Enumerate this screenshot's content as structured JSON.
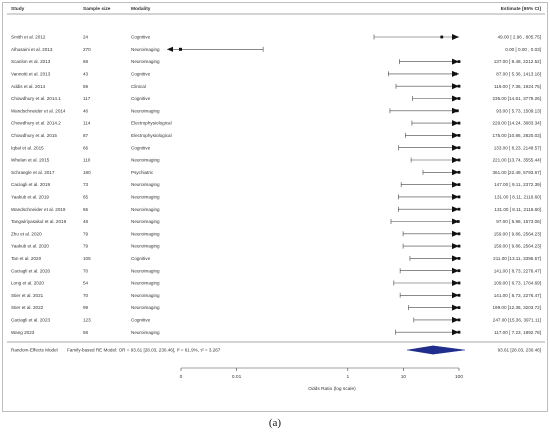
{
  "caption": "(a)",
  "chart_data": {
    "type": "forest",
    "headers": {
      "study": "Study",
      "sample_size": "Sample size",
      "modality": "Modality",
      "estimate": "Estimate [95% CI]"
    },
    "x_axis": {
      "label": "Odds Ratio (log scale)",
      "scale": "log",
      "ticks": [
        0.001,
        0.01,
        1,
        10,
        100
      ],
      "tick_labels": [
        "0",
        "0.01",
        "1",
        "10",
        "100"
      ],
      "range": [
        0.001,
        100
      ]
    },
    "studies": [
      {
        "study": "Smith et al. 2012",
        "n": "24",
        "modality": "Cognitive",
        "est": 49.0,
        "lo": 2.96,
        "hi": 805.75,
        "text": "49.00 [ 2.96 , 805.75]"
      },
      {
        "study": "Alhusaini et al. 2013",
        "n": "270",
        "modality": "Neuroimaging",
        "est": 0.0,
        "lo": 0.0,
        "hi": 0.03,
        "text": "0.00 [ 0.00 , 0.03]"
      },
      {
        "study": "Scanlon et al. 2013",
        "n": "68",
        "modality": "Neuroimaging",
        "est": 137.0,
        "lo": 8.48,
        "hi": 2212.52,
        "text": "137.00 [ 8.48, 2212.52]"
      },
      {
        "study": "Vannotti et al. 2013",
        "n": "43",
        "modality": "Cognitive",
        "est": 87.0,
        "lo": 5.36,
        "hi": 1413.16,
        "text": "87.00 [ 5.36, 1413.16]"
      },
      {
        "study": "Addis et al. 2014",
        "n": "59",
        "modality": "Clinical",
        "est": 119.0,
        "lo": 7.36,
        "hi": 1924.75,
        "text": "119.00 [ 7.36, 1924.75]"
      },
      {
        "study": "Chowdhury et al. 2014.1",
        "n": "117",
        "modality": "Cognitive",
        "est": 235.0,
        "lo": 14.61,
        "hi": 3779.26,
        "text": "235.00 [14.61, 3779.26]"
      },
      {
        "study": "Wandschneider et al. 2014",
        "n": "46",
        "modality": "Neuroimaging",
        "est": 93.0,
        "lo": 5.73,
        "hi": 1509.13,
        "text": "93.00 [ 5.73, 1509.13]"
      },
      {
        "study": "Chowdhury et al. 2014.2",
        "n": "114",
        "modality": "Electrophysiological",
        "est": 229.0,
        "lo": 14.24,
        "hi": 3683.34,
        "text": "229.00 [14.24, 3683.34]"
      },
      {
        "study": "Chowdhury et al. 2015",
        "n": "87",
        "modality": "Electrophysiological",
        "est": 175.0,
        "lo": 10.86,
        "hi": 2820.03,
        "text": "175.00 [10.86, 2820.03]"
      },
      {
        "study": "Iqbal et al. 2015",
        "n": "66",
        "modality": "Cognitive",
        "est": 133.0,
        "lo": 8.23,
        "hi": 2148.57,
        "text": "133.00 [ 8.23, 2148.57]"
      },
      {
        "study": "Whelan et al. 2015",
        "n": "110",
        "modality": "Neuroimaging",
        "est": 221.0,
        "lo": 13.74,
        "hi": 3555.44,
        "text": "221.00 [13.74, 3555.44]"
      },
      {
        "study": "Schraegle et al. 2017",
        "n": "180",
        "modality": "Psychiatric",
        "est": 361.0,
        "lo": 22.49,
        "hi": 5793.67,
        "text": "361.00 [22.49, 5793.67]"
      },
      {
        "study": "Caciagli et al. 2019",
        "n": "73",
        "modality": "Neuroimaging",
        "est": 147.0,
        "lo": 9.11,
        "hi": 2372.39,
        "text": "147.00 [ 9.11, 2372.39]"
      },
      {
        "study": "Yaakub et al. 2019",
        "n": "65",
        "modality": "Neuroimaging",
        "est": 131.0,
        "lo": 8.11,
        "hi": 2116.6,
        "text": "131.00 [ 8.11, 2116.60]"
      },
      {
        "study": "Wandschneider et al. 2019",
        "n": "65",
        "modality": "Neuroimaging",
        "est": 131.0,
        "lo": 8.11,
        "hi": 2116.6,
        "text": "131.00 [ 8.11, 2116.60]"
      },
      {
        "study": "Tangwiriyasakul et al. 2019",
        "n": "48",
        "modality": "Neuroimaging",
        "est": 97.0,
        "lo": 5.98,
        "hi": 1573.06,
        "text": "97.00 [ 5.98, 1573.06]"
      },
      {
        "study": "Zhu et al. 2020",
        "n": "79",
        "modality": "Neuroimaging",
        "est": 159.0,
        "lo": 9.86,
        "hi": 2564.23,
        "text": "159.00 [ 9.86, 2564.23]"
      },
      {
        "study": "Yaakub et al. 2020",
        "n": "79",
        "modality": "Neuroimaging",
        "est": 159.0,
        "lo": 9.86,
        "hi": 2564.23,
        "text": "159.00 [ 9.86, 2564.23]"
      },
      {
        "study": "Tan et al. 2020",
        "n": "105",
        "modality": "Cognitive",
        "est": 211.0,
        "lo": 13.11,
        "hi": 3395.57,
        "text": "211.00 [13.11, 3395.57]"
      },
      {
        "study": "Caciagli et al. 2020",
        "n": "70",
        "modality": "Neuroimaging",
        "est": 141.0,
        "lo": 8.73,
        "hi": 2276.47,
        "text": "141.00 [ 8.73, 2276.47]"
      },
      {
        "study": "Long et al. 2020",
        "n": "54",
        "modality": "Neuroimaging",
        "est": 109.0,
        "lo": 6.73,
        "hi": 1764.69,
        "text": "109.00 [ 6.73, 1764.69]"
      },
      {
        "study": "Stier et al. 2021",
        "n": "70",
        "modality": "Neuroimaging",
        "est": 141.0,
        "lo": 8.73,
        "hi": 2276.47,
        "text": "141.00 [ 8.73, 2276.47]"
      },
      {
        "study": "Stier et al. 2022",
        "n": "99",
        "modality": "Neuroimaging",
        "est": 199.0,
        "lo": 12.36,
        "hi": 3203.72,
        "text": "199.00 [12.36, 3203.72]"
      },
      {
        "study": "Caciagli et al. 2023",
        "n": "123",
        "modality": "Cognitive",
        "est": 247.0,
        "lo": 15.36,
        "hi": 3971.11,
        "text": "247.00 [15.36, 3971.11]"
      },
      {
        "study": "Wang 2023",
        "n": "58",
        "modality": "Neuroimaging",
        "est": 117.0,
        "lo": 7.23,
        "hi": 1892.78,
        "text": "117.00 [ 7.23, 1892.78]"
      }
    ],
    "summary": {
      "label": "Random-Effects Model",
      "description": "Family-based RE Model: OR = 93.61 [28.03, 230.46], I² = 61.9%, τ² = 3.267",
      "est": 93.61,
      "lo": 28.03,
      "hi": 230.46,
      "text": "93.61 [28.03, 230.46]",
      "color": "#1f2d8c"
    }
  }
}
